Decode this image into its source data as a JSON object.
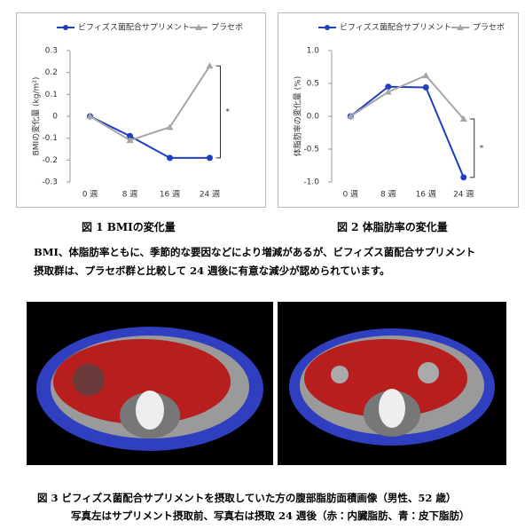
{
  "chart_data": [
    {
      "type": "line",
      "categories": [
        "0 週",
        "8 週",
        "16 週",
        "24 週"
      ],
      "y_label": "BMIの変化量 (kg/m²)",
      "series": [
        {
          "name": "ビフィズス菌配合サプリメント",
          "color": "#1f3fbf",
          "values": [
            0,
            -0.09,
            -0.19,
            -0.19
          ]
        },
        {
          "name": "プラセボ",
          "color": "#a6a6a6",
          "values": [
            0,
            -0.11,
            -0.05,
            0.23
          ]
        }
      ],
      "ylim": [
        -0.3,
        0.3
      ],
      "yticks": [
        -0.3,
        -0.2,
        -0.1,
        0,
        0.1,
        0.2,
        0.3
      ],
      "legend": "top",
      "annotation": "*"
    },
    {
      "type": "line",
      "categories": [
        "0 週",
        "8 週",
        "16 週",
        "24 週"
      ],
      "y_label": "体脂肪率の変化量 (%)",
      "series": [
        {
          "name": "ビフィズス菌配合サプリメント",
          "color": "#1f3fbf",
          "values": [
            0,
            0.45,
            0.44,
            -0.93
          ]
        },
        {
          "name": "プラセボ",
          "color": "#a6a6a6",
          "values": [
            0,
            0.37,
            0.62,
            -0.04
          ]
        }
      ],
      "ylim": [
        -1,
        1
      ],
      "yticks": [
        {
          "value": -1,
          "label": "-1.0"
        },
        -0.5,
        {
          "value": 0,
          "label": "0.0"
        },
        0.5,
        {
          "value": 1,
          "label": "1.0"
        }
      ],
      "legend": "top",
      "annotation": "*"
    }
  ],
  "captions": [
    "図 1  BMIの変化量",
    "図 2  体脂肪率の変化量"
  ],
  "body": [
    "BMI、体脂肪率ともに、季節的な要因などにより増減があるが、ビフィズス菌配合サプリメント",
    "摂取群は、プラセボ群と比較して 24 週後に有意な減少が認められています。"
  ],
  "figure3": {
    "caption": [
      "図 3  ビフィズス菌配合サプリメントを摂取していた方の腹部脂肪面積画像（男性、52 歳）",
      "写真左はサプリメント摂取前、写真右は摂取 24 週後（赤：内臓脂肪、青：皮下脂肪）"
    ]
  }
}
